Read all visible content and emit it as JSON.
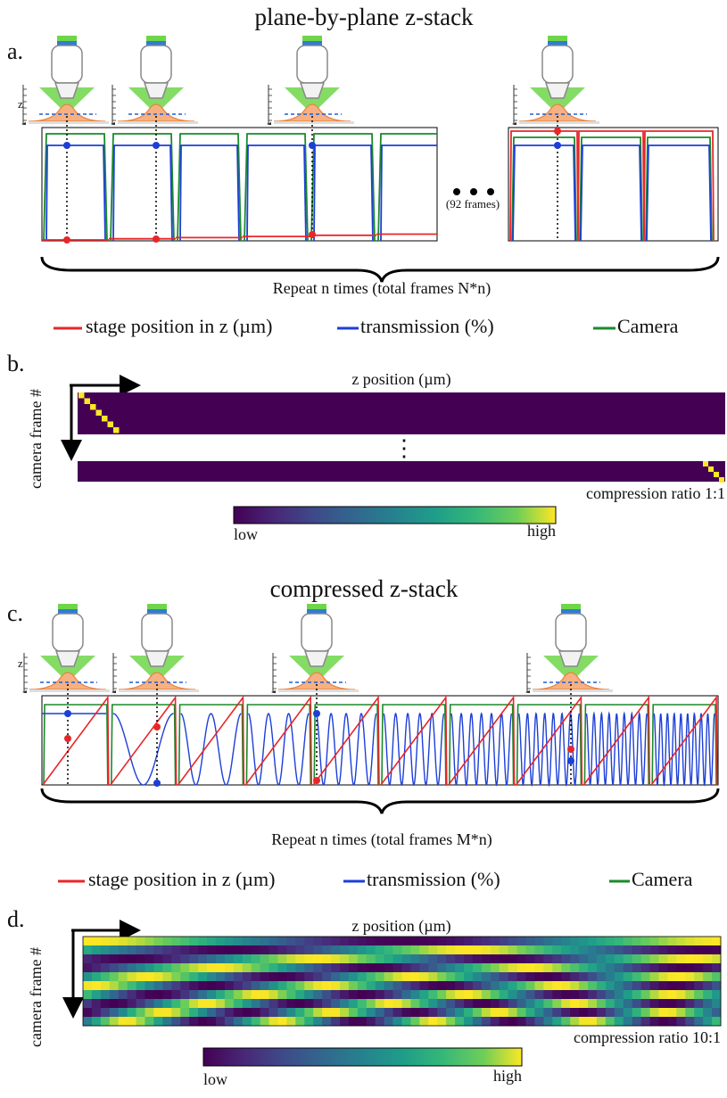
{
  "panel_a": {
    "label": "a.",
    "title": "plane-by-plane z-stack",
    "z_label": "z",
    "gap_note": "(92 frames)",
    "repeat_note": "Repeat n times (total frames N*n)",
    "legend": [
      "stage position in z (µm)",
      "transmission (%)",
      "Camera"
    ]
  },
  "panel_b": {
    "label": "b.",
    "y_axis": "camera frame #",
    "x_axis": "z position (µm)",
    "compression": "compression ratio 1:1",
    "colorbar": {
      "low": "low",
      "high": "high"
    }
  },
  "panel_c": {
    "label": "c.",
    "title": "compressed z-stack",
    "z_label": "z",
    "repeat_note": "Repeat n times  (total frames M*n)",
    "legend": [
      "stage position in z (µm)",
      "transmission (%)",
      "Camera"
    ]
  },
  "panel_d": {
    "label": "d.",
    "y_axis": "camera frame #",
    "x_axis": "z position (µm)",
    "compression": "compression ratio 10:1",
    "colorbar": {
      "low": "low",
      "high": "high"
    }
  }
}
